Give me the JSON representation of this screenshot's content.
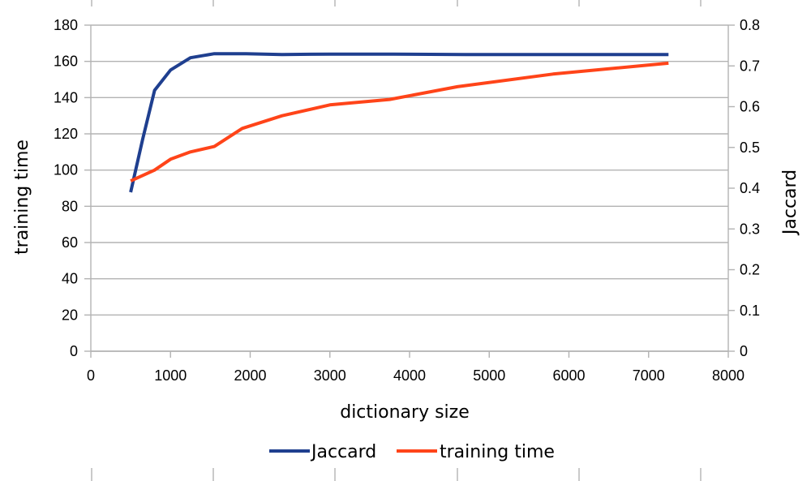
{
  "chart_data": {
    "type": "line",
    "title": "",
    "xlabel": "dictionary size",
    "ylabel_left": "training time",
    "ylabel_right": "Jaccard",
    "xlim": [
      0,
      8000
    ],
    "ylim_left": [
      0,
      180
    ],
    "ylim_right": [
      0,
      0.8
    ],
    "x_ticks": [
      "0",
      "1000",
      "2000",
      "3000",
      "4000",
      "5000",
      "6000",
      "7000",
      "8000"
    ],
    "y_left_ticks": [
      "0",
      "20",
      "40",
      "60",
      "80",
      "100",
      "120",
      "140",
      "160",
      "180"
    ],
    "y_right_ticks": [
      "0",
      "0.1",
      "0.2",
      "0.3",
      "0.4",
      "0.5",
      "0.6",
      "0.7",
      "0.8"
    ],
    "grid": "horizontal",
    "legend_position": "bottom",
    "series": [
      {
        "name": "Jaccard",
        "axis": "right",
        "color": "#1f3f8f",
        "x": [
          500,
          650,
          800,
          1000,
          1250,
          1550,
          1950,
          2400,
          3000,
          3800,
          4700,
          5800,
          7250
        ],
        "y": [
          0.39,
          0.52,
          0.64,
          0.69,
          0.72,
          0.73,
          0.73,
          0.728,
          0.729,
          0.729,
          0.728,
          0.728,
          0.728
        ]
      },
      {
        "name": "training time",
        "axis": "left",
        "color": "#ff4419",
        "x": [
          500,
          800,
          1000,
          1250,
          1550,
          1900,
          2400,
          3000,
          3750,
          4600,
          5800,
          7250
        ],
        "y": [
          94,
          100,
          106,
          110,
          113,
          123,
          130,
          136,
          139,
          146,
          153,
          159
        ]
      }
    ]
  }
}
